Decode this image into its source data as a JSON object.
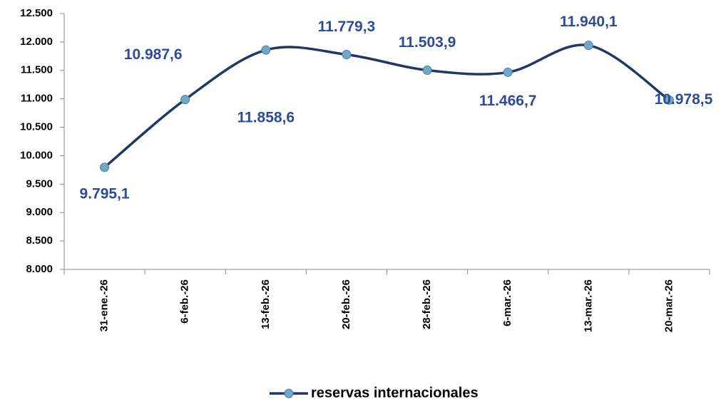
{
  "chart_data": {
    "type": "line",
    "categories": [
      "31-ene.-26",
      "6-feb.-26",
      "13-feb.-26",
      "20-feb.-26",
      "28-feb.-26",
      "6-mar.-26",
      "13-mar.-26",
      "20-mar.-26"
    ],
    "series": [
      {
        "name": "reservas internacionales",
        "color": "#1f3864",
        "marker_color": "#6fa8c8",
        "values": [
          9795.1,
          10987.6,
          11858.6,
          11779.3,
          11503.9,
          11466.7,
          11940.1,
          10978.5
        ],
        "value_labels": [
          "9.795,1",
          "10.987,6",
          "11.858,6",
          "11.779,3",
          "11.503,9",
          "11.466,7",
          "11.940,1",
          "10.978,5"
        ]
      }
    ],
    "ylim": [
      8000,
      12500
    ],
    "yticks": [
      {
        "value": 8000,
        "label": "8.000"
      },
      {
        "value": 8500,
        "label": "8.500"
      },
      {
        "value": 9000,
        "label": "9.000"
      },
      {
        "value": 9500,
        "label": "9.500"
      },
      {
        "value": 10000,
        "label": "10.000"
      },
      {
        "value": 10500,
        "label": "10.500"
      },
      {
        "value": 11000,
        "label": "11.000"
      },
      {
        "value": 11500,
        "label": "11.500"
      },
      {
        "value": 12000,
        "label": "12.000"
      },
      {
        "value": 12500,
        "label": "12.500"
      }
    ],
    "smooth": true,
    "grid": false,
    "legend": "bottom"
  }
}
